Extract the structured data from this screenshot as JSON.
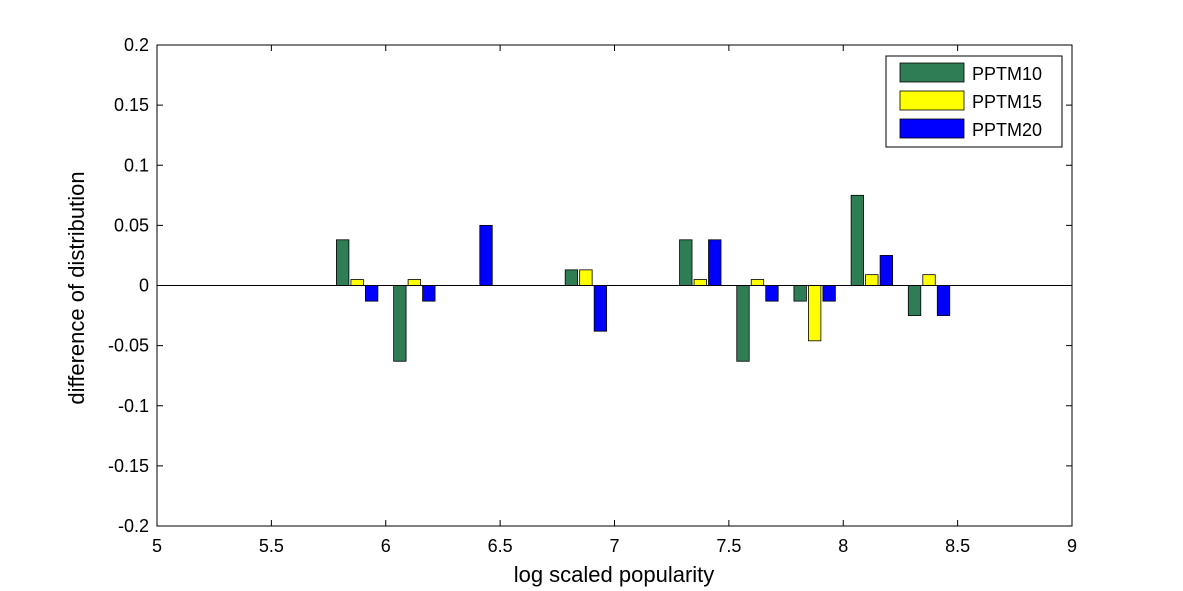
{
  "chart_data": {
    "type": "bar",
    "title": "",
    "xlabel": "log scaled popularity",
    "ylabel": "difference of distribution",
    "xlim": [
      5,
      9
    ],
    "ylim": [
      -0.2,
      0.2
    ],
    "xticks": [
      "5",
      "5.5",
      "6",
      "6.5",
      "7",
      "7.5",
      "8",
      "8.5",
      "9"
    ],
    "yticks": [
      "-0.2",
      "-0.15",
      "-0.1",
      "-0.05",
      "0",
      "0.05",
      "0.1",
      "0.15",
      "0.2"
    ],
    "grid": false,
    "legend_position": "top-right",
    "x": [
      5.875,
      6.125,
      6.375,
      6.875,
      7.375,
      7.625,
      7.875,
      8.125,
      8.375
    ],
    "series": [
      {
        "name": "PPTM10",
        "color": "#2e7d54",
        "values": [
          0.038,
          -0.063,
          0,
          0.013,
          0.038,
          -0.063,
          -0.013,
          0.075,
          -0.025
        ]
      },
      {
        "name": "PPTM15",
        "color": "#ffff00",
        "values": [
          0.005,
          0.005,
          0,
          0.013,
          0.005,
          0.005,
          -0.046,
          0.009,
          0.009
        ]
      },
      {
        "name": "PPTM20",
        "color": "#0000ff",
        "values": [
          -0.013,
          -0.013,
          0.05,
          -0.038,
          0.038,
          -0.013,
          -0.013,
          0.025,
          -0.025
        ]
      }
    ]
  }
}
